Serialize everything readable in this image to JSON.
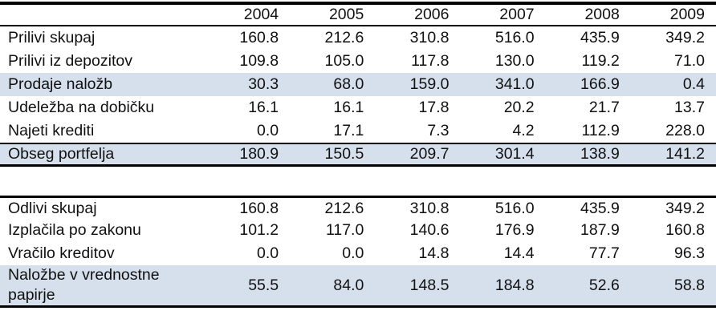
{
  "colors": {
    "highlight_row": "#d6e0ed",
    "rule": "#000000",
    "text": "#111111",
    "background": "#ffffff"
  },
  "header": {
    "label_column": "",
    "years": [
      "2004",
      "2005",
      "2006",
      "2007",
      "2008",
      "2009"
    ]
  },
  "inflows_table": {
    "rows": [
      {
        "label": "Prilivi skupaj",
        "values": [
          "160.8",
          "212.6",
          "310.8",
          "516.0",
          "435.9",
          "349.2"
        ],
        "highlight": false
      },
      {
        "label": "Prilivi iz depozitov",
        "values": [
          "109.8",
          "105.0",
          "117.8",
          "130.0",
          "119.2",
          "71.0"
        ],
        "highlight": false
      },
      {
        "label": "Prodaje naložb",
        "values": [
          "30.3",
          "68.0",
          "159.0",
          "341.0",
          "166.9",
          "0.4"
        ],
        "highlight": true
      },
      {
        "label": "Udeležba na dobičku",
        "values": [
          "16.1",
          "16.1",
          "17.8",
          "20.2",
          "21.7",
          "13.7"
        ],
        "highlight": false
      },
      {
        "label": "Najeti krediti",
        "values": [
          "0.0",
          "17.1",
          "7.3",
          "4.2",
          "112.9",
          "228.0"
        ],
        "highlight": false
      },
      {
        "label": "Obseg portfelja",
        "values": [
          "180.9",
          "150.5",
          "209.7",
          "301.4",
          "138.9",
          "141.2"
        ],
        "highlight": true
      }
    ]
  },
  "outflows_table": {
    "rows": [
      {
        "label": "Odlivi skupaj",
        "values": [
          "160.8",
          "212.6",
          "310.8",
          "516.0",
          "435.9",
          "349.2"
        ],
        "highlight": false
      },
      {
        "label": "Izplačila po zakonu",
        "values": [
          "101.2",
          "117.0",
          "140.6",
          "176.9",
          "187.9",
          "160.8"
        ],
        "highlight": false
      },
      {
        "label": "Vračilo kreditov",
        "values": [
          "0.0",
          "0.0",
          "14.8",
          "14.4",
          "77.7",
          "96.3"
        ],
        "highlight": false
      },
      {
        "label": "Naložbe v vrednostne papirje",
        "values": [
          "55.5",
          "84.0",
          "148.5",
          "184.8",
          "52.6",
          "58.8"
        ],
        "highlight": true
      }
    ]
  }
}
